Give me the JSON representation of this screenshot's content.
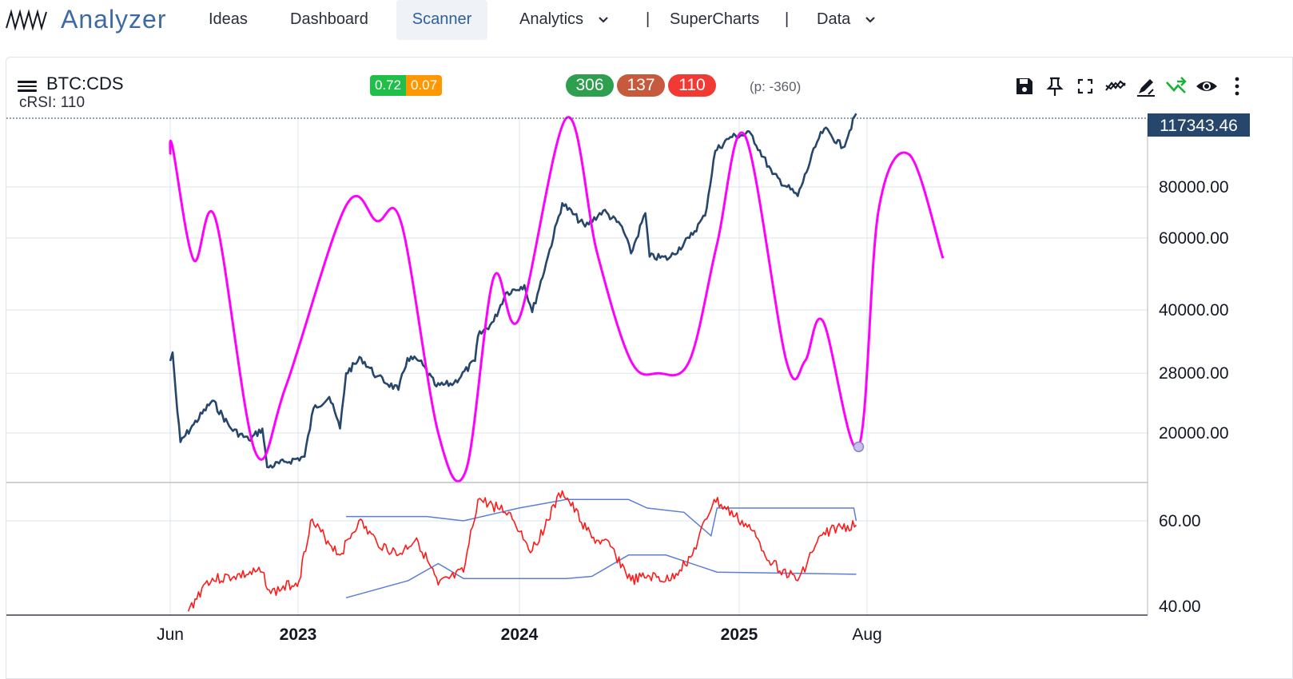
{
  "nav": {
    "logo_text": "Analyzer",
    "items": [
      {
        "label": "Ideas"
      },
      {
        "label": "Dashboard"
      },
      {
        "label": "Scanner"
      },
      {
        "label": "Analytics"
      },
      {
        "label": "SuperCharts"
      },
      {
        "label": "Data"
      }
    ],
    "separator": "|"
  },
  "chart_header": {
    "symbol": "BTC:CDS",
    "indicator_label": "cRSI: 110",
    "small_badges": [
      {
        "value": "0.72",
        "color": "#1fbf4a"
      },
      {
        "value": "0.07",
        "color": "#ff9800"
      }
    ],
    "count_badges": [
      {
        "value": "306",
        "color": "#2e9e4f"
      },
      {
        "value": "137",
        "color": "#c65a3c"
      },
      {
        "value": "110",
        "color": "#f03a33"
      }
    ],
    "phase_note": "(p: -360)"
  },
  "toolbar": [
    {
      "icon": "save-icon"
    },
    {
      "icon": "pin-icon"
    },
    {
      "icon": "fullscreen-icon"
    },
    {
      "icon": "indicator-icon"
    },
    {
      "icon": "draw-icon"
    },
    {
      "icon": "trend-icon"
    },
    {
      "icon": "eye-icon"
    },
    {
      "icon": "more-vertical-icon"
    }
  ],
  "colors": {
    "price": "#27466b",
    "cycle": "#ff00ff",
    "crsi": "#ff1a1a",
    "bands": "#5b7fd6",
    "grid": "#dde3ee",
    "last_price_bg": "#27466b"
  },
  "chart_data": {
    "type": "line",
    "price_axis": {
      "scale": "log",
      "ticks": [
        "80000.00",
        "60000.00",
        "40000.00",
        "28000.00",
        "20000.00"
      ],
      "last_price": "117343.46"
    },
    "indicator_axis": {
      "ticks": [
        "60.00",
        "40.00"
      ]
    },
    "x_ticks": [
      {
        "label": "Jun",
        "bold": false
      },
      {
        "label": "2023",
        "bold": true
      },
      {
        "label": "2024",
        "bold": true
      },
      {
        "label": "2025",
        "bold": true
      },
      {
        "label": "Aug",
        "bold": false
      }
    ],
    "series": [
      {
        "name": "BTC price",
        "points": [
          [
            "2022-06-01",
            30000
          ],
          [
            "2022-06-05",
            31500
          ],
          [
            "2022-06-13",
            22500
          ],
          [
            "2022-06-18",
            19000
          ],
          [
            "2022-07-10",
            21000
          ],
          [
            "2022-08-10",
            24000
          ],
          [
            "2022-09-10",
            20500
          ],
          [
            "2022-10-10",
            19200
          ],
          [
            "2022-11-01",
            20500
          ],
          [
            "2022-11-09",
            16500
          ],
          [
            "2022-12-10",
            17000
          ],
          [
            "2023-01-10",
            17500
          ],
          [
            "2023-01-25",
            23000
          ],
          [
            "2023-02-20",
            24500
          ],
          [
            "2023-03-10",
            20500
          ],
          [
            "2023-03-20",
            28000
          ],
          [
            "2023-04-14",
            30500
          ],
          [
            "2023-05-10",
            27500
          ],
          [
            "2023-06-15",
            25500
          ],
          [
            "2023-06-30",
            30500
          ],
          [
            "2023-07-20",
            30000
          ],
          [
            "2023-08-17",
            26000
          ],
          [
            "2023-09-15",
            26500
          ],
          [
            "2023-10-20",
            30000
          ],
          [
            "2023-10-25",
            34500
          ],
          [
            "2023-11-20",
            37500
          ],
          [
            "2023-12-10",
            44000
          ],
          [
            "2024-01-10",
            46000
          ],
          [
            "2024-01-23",
            39500
          ],
          [
            "2024-02-15",
            52000
          ],
          [
            "2024-03-13",
            73000
          ],
          [
            "2024-04-20",
            64000
          ],
          [
            "2024-05-20",
            70000
          ],
          [
            "2024-06-20",
            64000
          ],
          [
            "2024-07-05",
            55000
          ],
          [
            "2024-07-29",
            69000
          ],
          [
            "2024-08-05",
            54000
          ],
          [
            "2024-09-06",
            53500
          ],
          [
            "2024-10-10",
            60000
          ],
          [
            "2024-11-05",
            68000
          ],
          [
            "2024-11-22",
            98000
          ],
          [
            "2024-12-17",
            106000
          ],
          [
            "2025-01-20",
            108000
          ],
          [
            "2025-02-25",
            86000
          ],
          [
            "2025-04-08",
            76000
          ],
          [
            "2025-05-10",
            103000
          ],
          [
            "2025-05-22",
            111000
          ],
          [
            "2025-06-22",
            100000
          ],
          [
            "2025-07-14",
            121000
          ]
        ]
      },
      {
        "name": "Cycle",
        "points": [
          [
            "2022-06-01",
            96000
          ],
          [
            "2022-06-05",
            100000
          ],
          [
            "2022-07-10",
            53000
          ],
          [
            "2022-08-15",
            67000
          ],
          [
            "2022-10-20",
            18000
          ],
          [
            "2022-12-10",
            26000
          ],
          [
            "2023-03-20",
            72000
          ],
          [
            "2023-05-10",
            66000
          ],
          [
            "2023-06-20",
            65000
          ],
          [
            "2023-08-20",
            20000
          ],
          [
            "2023-10-05",
            16200
          ],
          [
            "2023-11-20",
            48000
          ],
          [
            "2024-01-01",
            38000
          ],
          [
            "2024-03-20",
            118000
          ],
          [
            "2024-05-10",
            55000
          ],
          [
            "2024-07-05",
            30000
          ],
          [
            "2024-08-20",
            28000
          ],
          [
            "2024-10-10",
            30000
          ],
          [
            "2024-11-25",
            58000
          ],
          [
            "2025-01-10",
            107000
          ],
          [
            "2025-03-20",
            30000
          ],
          [
            "2025-04-20",
            30000
          ],
          [
            "2025-05-20",
            37500
          ],
          [
            "2025-07-18",
            18500
          ],
          [
            "2025-08-20",
            70000
          ],
          [
            "2025-10-10",
            96000
          ],
          [
            "2025-12-05",
            53500
          ]
        ]
      },
      {
        "name": "cRSI",
        "points": [
          [
            "2022-07-01",
            38.8
          ],
          [
            "2022-08-01",
            46
          ],
          [
            "2022-09-15",
            47
          ],
          [
            "2022-11-01",
            48
          ],
          [
            "2022-11-15",
            43
          ],
          [
            "2023-01-01",
            46
          ],
          [
            "2023-01-20",
            60
          ],
          [
            "2023-03-10",
            52
          ],
          [
            "2023-04-10",
            60
          ],
          [
            "2023-05-10",
            55
          ],
          [
            "2023-06-15",
            52
          ],
          [
            "2023-07-15",
            56
          ],
          [
            "2023-08-20",
            45
          ],
          [
            "2023-10-01",
            48
          ],
          [
            "2023-10-25",
            65
          ],
          [
            "2023-12-15",
            62
          ],
          [
            "2024-01-23",
            53
          ],
          [
            "2024-03-13",
            67
          ],
          [
            "2024-05-01",
            56
          ],
          [
            "2024-06-01",
            54
          ],
          [
            "2024-07-05",
            46
          ],
          [
            "2024-08-05",
            47
          ],
          [
            "2024-09-06",
            46
          ],
          [
            "2024-10-15",
            52
          ],
          [
            "2024-11-20",
            65
          ],
          [
            "2025-01-20",
            58
          ],
          [
            "2025-02-25",
            50
          ],
          [
            "2025-04-08",
            46
          ],
          [
            "2025-05-10",
            55
          ],
          [
            "2025-06-01",
            58
          ],
          [
            "2025-07-14",
            59
          ]
        ]
      },
      {
        "name": "cRSI upper band",
        "points": [
          [
            "2023-03-20",
            61
          ],
          [
            "2023-08-01",
            61
          ],
          [
            "2023-10-01",
            60
          ],
          [
            "2024-01-01",
            63
          ],
          [
            "2024-03-20",
            65
          ],
          [
            "2024-07-01",
            65
          ],
          [
            "2024-08-01",
            63
          ],
          [
            "2024-10-01",
            62
          ],
          [
            "2024-11-15",
            56.5
          ],
          [
            "2024-11-25",
            63
          ],
          [
            "2025-07-10",
            63
          ],
          [
            "2025-07-14",
            60
          ]
        ]
      },
      {
        "name": "cRSI lower band",
        "points": [
          [
            "2023-03-20",
            42
          ],
          [
            "2023-07-01",
            46
          ],
          [
            "2023-08-20",
            50
          ],
          [
            "2023-10-01",
            46.5
          ],
          [
            "2024-03-20",
            46.5
          ],
          [
            "2024-05-01",
            47
          ],
          [
            "2024-07-01",
            52
          ],
          [
            "2024-09-01",
            52
          ],
          [
            "2024-11-25",
            48
          ],
          [
            "2025-07-14",
            47.5
          ]
        ]
      }
    ],
    "marker": {
      "date": "2025-07-18",
      "value": 18500
    }
  }
}
